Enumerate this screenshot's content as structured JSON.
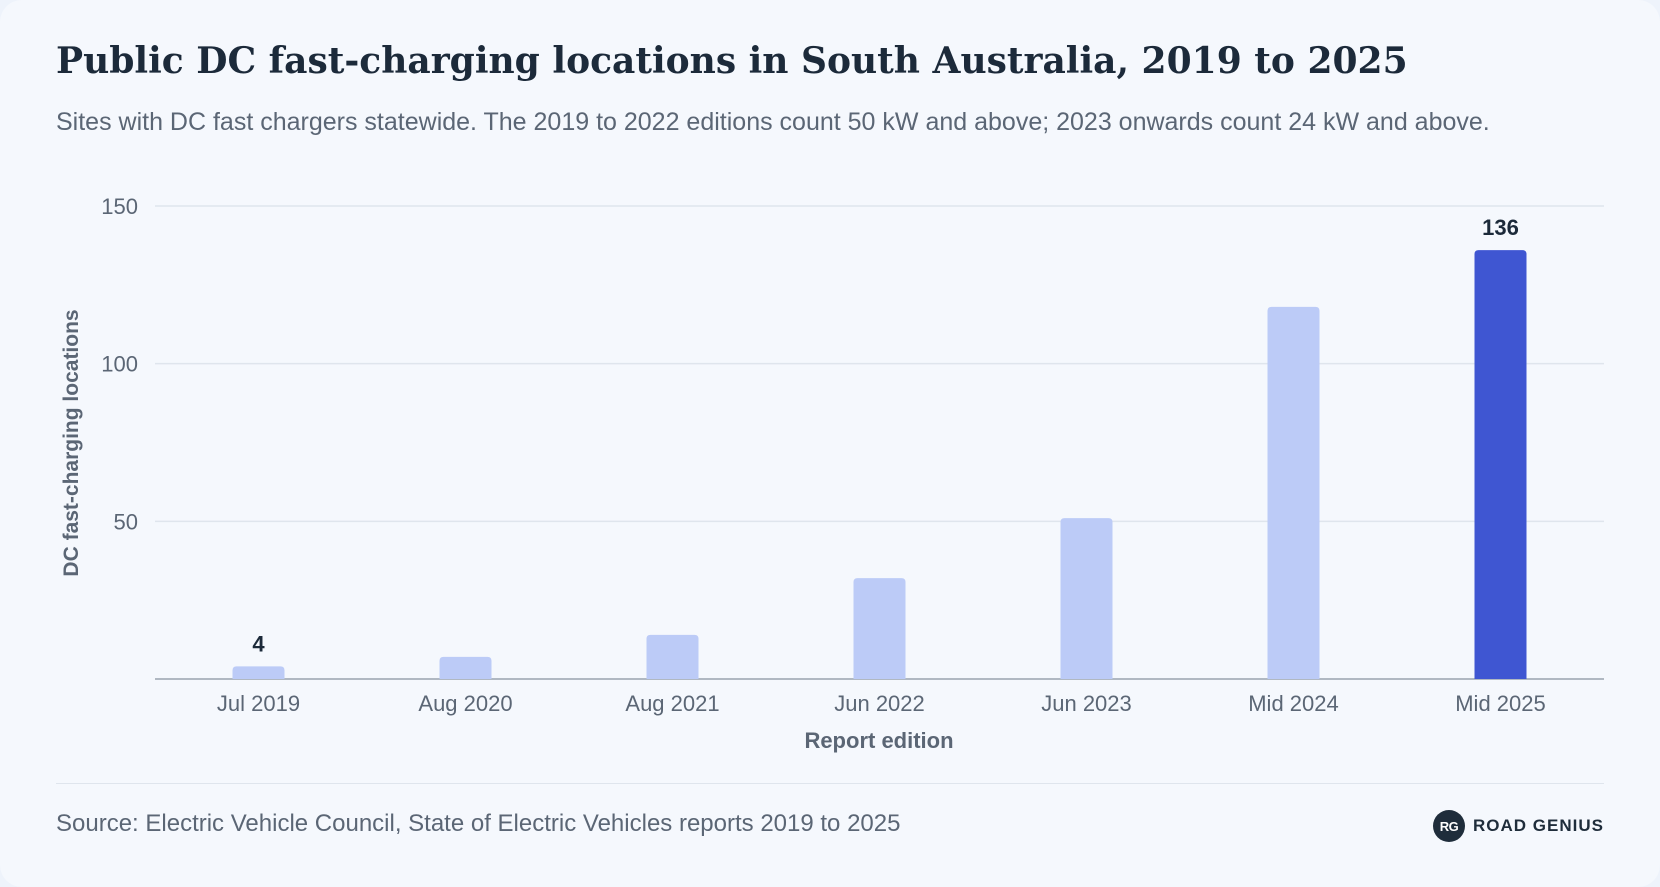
{
  "chart_data": {
    "type": "bar",
    "title": "Public DC fast-charging locations in South Australia, 2019 to 2025",
    "subtitle": "Sites with DC fast chargers statewide. The 2019 to 2022 editions count 50 kW and above; 2023 onwards count 24 kW and above.",
    "xlabel": "Report edition",
    "ylabel": "DC fast-charging locations",
    "categories": [
      "Jul 2019",
      "Aug 2020",
      "Aug 2021",
      "Jun 2022",
      "Jun 2023",
      "Mid 2024",
      "Mid 2025"
    ],
    "values": [
      4,
      7,
      14,
      32,
      51,
      118,
      136
    ],
    "data_labels": [
      "4",
      "",
      "",
      "",
      "",
      "",
      "136"
    ],
    "ylim": [
      0,
      150
    ],
    "yticks": [
      50,
      100,
      150
    ],
    "grid": true,
    "colors": {
      "bar": "#bccbf7",
      "highlight": "#3f56d2",
      "grid": "#dfe5ed",
      "axis": "#9aa3ae"
    },
    "highlight_index": 6
  },
  "footer": {
    "source": "Source: Electric Vehicle Council, State of Electric Vehicles reports 2019 to 2025",
    "brand_mark": "RG",
    "brand_name": "ROAD GENIUS"
  }
}
